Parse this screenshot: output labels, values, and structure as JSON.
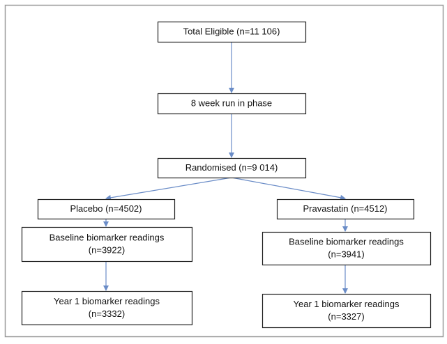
{
  "nodes": [
    {
      "lines": [
        "Total Eligible (n=11 106)"
      ]
    },
    {
      "lines": [
        "8 week run in phase"
      ]
    },
    {
      "lines": [
        "Randomised (n=9 014)"
      ]
    },
    {
      "lines": [
        "Placebo (n=4502)"
      ]
    },
    {
      "lines": [
        "Pravastatin (n=4512)"
      ]
    },
    {
      "lines": [
        "Baseline biomarker readings",
        "(n=3922)"
      ]
    },
    {
      "lines": [
        "Baseline biomarker readings",
        "(n=3941)"
      ]
    },
    {
      "lines": [
        "Year 1 biomarker readings",
        "(n=3332)"
      ]
    },
    {
      "lines": [
        "Year 1 biomarker readings",
        "(n=3327)"
      ]
    }
  ]
}
